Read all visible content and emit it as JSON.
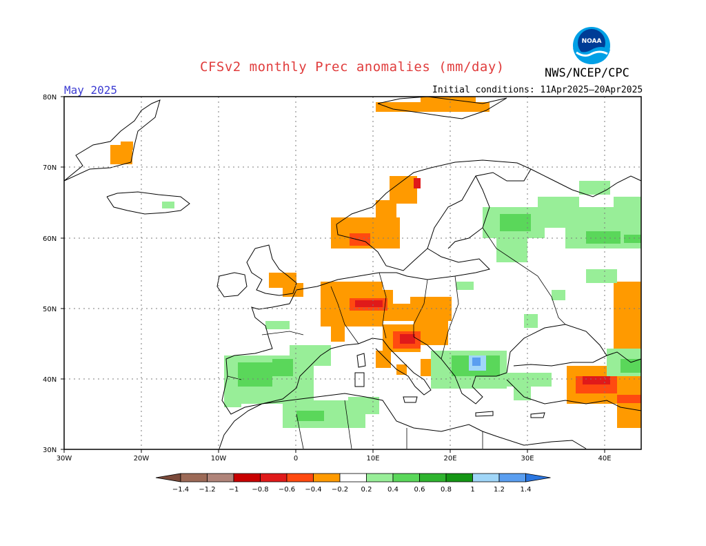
{
  "title": "CFSv2 monthly Prec anomalies (mm/day)",
  "agency": "NWS/NCEP/CPC",
  "logo_text": "NOAA",
  "valid_month": "May 2025",
  "initial_conditions": "Initial conditions: 11Apr2025–20Apr2025",
  "axes": {
    "lat_labels": [
      "30N",
      "40N",
      "50N",
      "60N",
      "70N",
      "80N"
    ],
    "lon_labels": [
      "30W",
      "20W",
      "10W",
      "0",
      "10E",
      "20E",
      "30E",
      "40E"
    ]
  },
  "legend": {
    "labels": [
      "−1.4",
      "−1.2",
      "−1",
      "−0.8",
      "−0.6",
      "−0.4",
      "−0.2",
      "0.2",
      "0.4",
      "0.6",
      "0.8",
      "1",
      "1.2",
      "1.4"
    ],
    "colors": [
      "#7b4a3a",
      "#9c6a57",
      "#b0847a",
      "#c80000",
      "#e01a1a",
      "#ff4a10",
      "#ff9a00",
      "#ffffff",
      "#98ee98",
      "#5ad75a",
      "#2fb42f",
      "#159615",
      "#a0d6f8",
      "#5a9ef0",
      "#2a76e0"
    ]
  },
  "colors": {
    "orange": "#ff9a00",
    "red_orange": "#ff4a10",
    "red": "#e01a1a",
    "light_green": "#98ee98",
    "green": "#5ad75a",
    "light_blue": "#a0d6f8",
    "blue": "#5a9ef0"
  }
}
